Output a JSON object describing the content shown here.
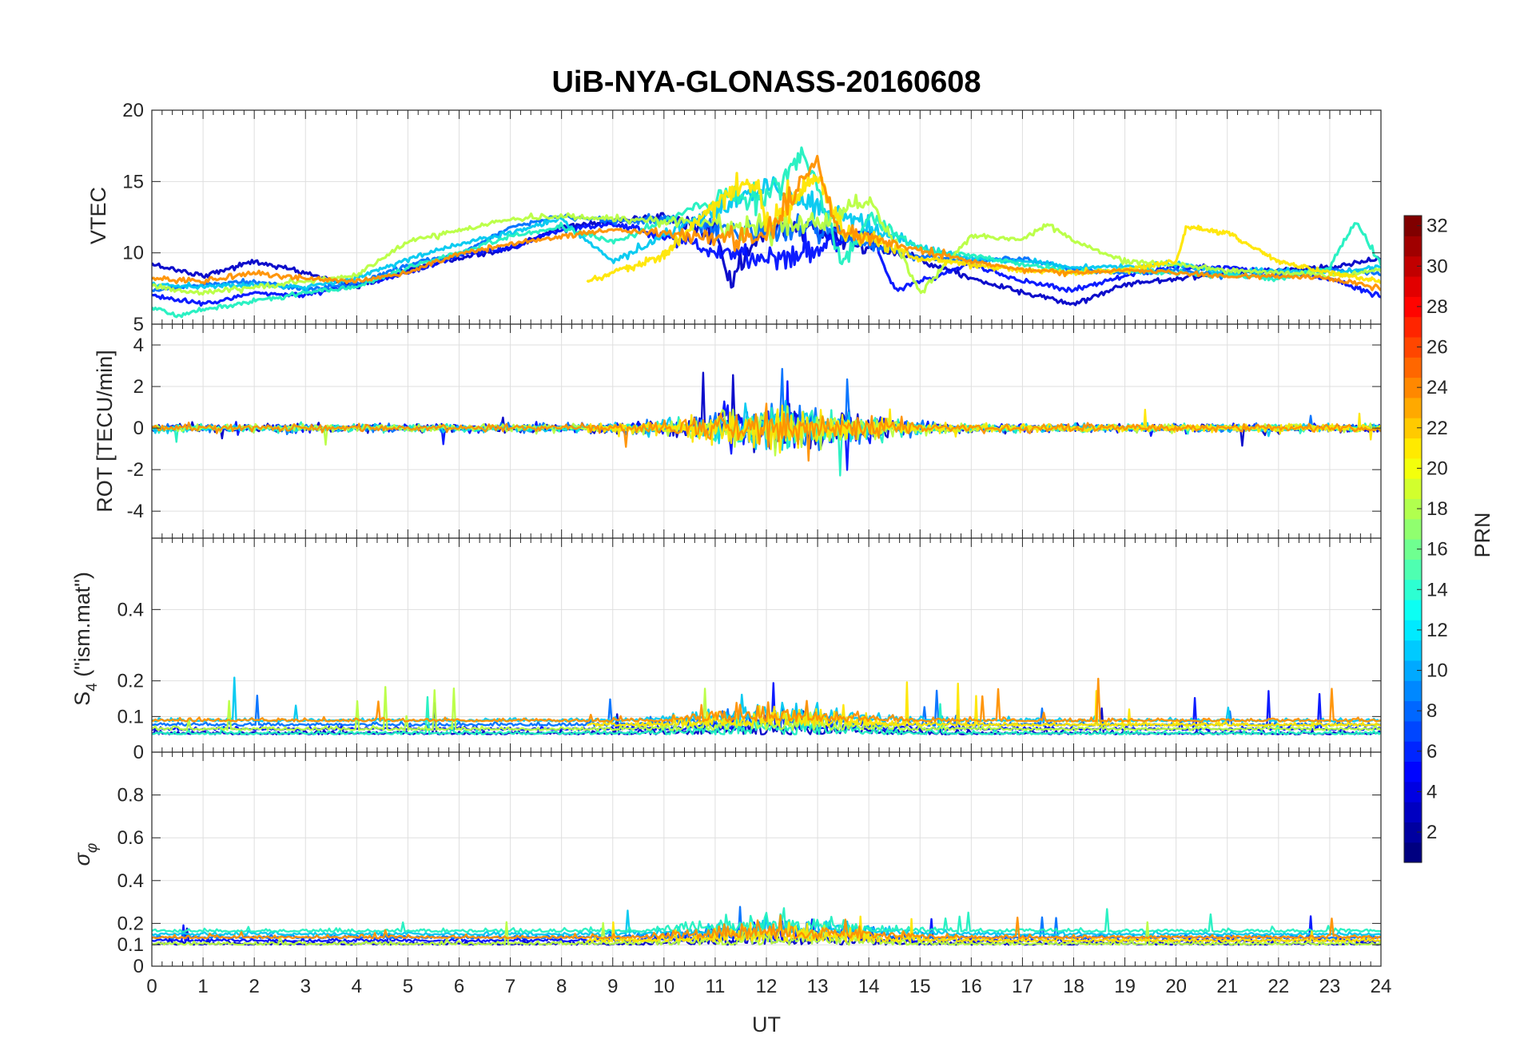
{
  "chart_data": {
    "type": "line",
    "title": "UiB-NYA-GLONASS-20160608",
    "xlabel": "UT",
    "xlim": [
      0,
      24
    ],
    "xticks": [
      0,
      1,
      2,
      3,
      4,
      5,
      6,
      7,
      8,
      9,
      10,
      11,
      12,
      13,
      14,
      15,
      16,
      17,
      18,
      19,
      20,
      21,
      22,
      23,
      24
    ],
    "grid": true,
    "panels": [
      {
        "ylabel": "VTEC",
        "ylim": [
          5,
          20
        ],
        "yticks": [
          5,
          10,
          15,
          20
        ]
      },
      {
        "ylabel": "ROT [TECU/min]",
        "ylim": [
          -5.3,
          5
        ],
        "yticks": [
          -4,
          -2,
          0,
          2,
          4
        ]
      },
      {
        "ylabel": "S₄ (\"ism.mat\")",
        "ylabel_main": "S",
        "ylabel_sub": "4",
        "ylabel_rest": " (\"ism.mat\")",
        "ylim": [
          0,
          0.6
        ],
        "yticks": [
          0,
          0.1,
          0.2,
          0.4
        ]
      },
      {
        "ylabel": "σ_φ",
        "ylabel_main": "σ",
        "ylabel_sub": "φ",
        "ylim": [
          0,
          1
        ],
        "yticks": [
          0,
          0.1,
          0.2,
          0.4,
          0.6,
          0.8
        ]
      }
    ],
    "colorbar": {
      "label": "PRN",
      "range": [
        1,
        32
      ],
      "ticks": [
        2,
        4,
        6,
        8,
        10,
        12,
        14,
        16,
        18,
        20,
        22,
        24,
        26,
        28,
        30,
        32
      ],
      "colormap": "jet"
    },
    "series": [
      {
        "prn": 2,
        "color": "#0000C8",
        "vtec": [
          [
            0,
            9.2
          ],
          [
            1,
            8.4
          ],
          [
            2,
            9.4
          ],
          [
            3,
            8.6
          ],
          [
            4,
            7.6
          ],
          [
            5,
            8.8
          ],
          [
            6,
            9.6
          ],
          [
            7,
            10.3
          ],
          [
            8,
            11.8
          ],
          [
            9,
            12.2
          ],
          [
            10,
            12.6
          ],
          [
            11,
            11.4
          ],
          [
            11.3,
            8.0
          ],
          [
            12,
            11.8
          ],
          [
            13,
            11.6
          ],
          [
            14,
            10.4
          ],
          [
            15,
            9.6
          ],
          [
            16,
            8.2
          ],
          [
            17,
            7.2
          ],
          [
            18,
            6.4
          ],
          [
            19,
            7.8
          ],
          [
            20,
            8.2
          ],
          [
            21,
            8.6
          ],
          [
            22,
            8.8
          ],
          [
            23,
            9.0
          ],
          [
            24,
            9.6
          ]
        ]
      },
      {
        "prn": 4,
        "color": "#0010FF",
        "vtec": [
          [
            0,
            7.0
          ],
          [
            1,
            6.4
          ],
          [
            2,
            7.2
          ],
          [
            3,
            7.0
          ],
          [
            4,
            7.8
          ],
          [
            5,
            8.6
          ],
          [
            6,
            9.8
          ],
          [
            7,
            10.4
          ],
          [
            8,
            11.6
          ],
          [
            9,
            12.0
          ],
          [
            10,
            11.2
          ],
          [
            11,
            10.2
          ],
          [
            12,
            9.6
          ],
          [
            13,
            10.2
          ],
          [
            14,
            11.6
          ],
          [
            14.5,
            7.4
          ],
          [
            16,
            9.2
          ],
          [
            17,
            8.0
          ],
          [
            18,
            7.4
          ],
          [
            19,
            8.4
          ],
          [
            20,
            9.0
          ],
          [
            21,
            9.0
          ],
          [
            22,
            8.6
          ],
          [
            23,
            8.2
          ],
          [
            24,
            7.0
          ]
        ]
      },
      {
        "prn": 8,
        "color": "#0070FF",
        "vtec": [
          [
            0,
            7.4
          ],
          [
            1,
            7.8
          ],
          [
            2,
            8.0
          ],
          [
            3,
            7.4
          ],
          [
            4,
            7.8
          ],
          [
            5,
            9.2
          ],
          [
            6,
            9.8
          ],
          [
            7,
            11.8
          ],
          [
            8,
            12.6
          ],
          [
            9,
            12.2
          ],
          [
            10,
            12.4
          ],
          [
            11,
            11.8
          ],
          [
            12,
            11.4
          ],
          [
            13,
            11.8
          ],
          [
            14,
            10.6
          ],
          [
            15,
            9.8
          ],
          [
            16,
            9.4
          ],
          [
            17,
            9.6
          ],
          [
            18,
            8.8
          ],
          [
            19,
            8.6
          ],
          [
            20,
            8.8
          ],
          [
            21,
            8.4
          ],
          [
            22,
            8.4
          ],
          [
            23,
            8.8
          ],
          [
            24,
            8.6
          ]
        ]
      },
      {
        "prn": 12,
        "color": "#00C8F0",
        "vtec": [
          [
            0,
            7.8
          ],
          [
            1,
            7.6
          ],
          [
            2,
            7.8
          ],
          [
            3,
            7.6
          ],
          [
            4,
            8.2
          ],
          [
            5,
            9.6
          ],
          [
            6,
            10.6
          ],
          [
            7,
            11.4
          ],
          [
            8,
            12.4
          ],
          [
            9,
            9.4
          ],
          [
            10,
            11.2
          ],
          [
            11,
            13.0
          ],
          [
            12,
            14.8
          ],
          [
            13,
            13.2
          ],
          [
            14,
            11.8
          ],
          [
            15,
            10.4
          ],
          [
            16,
            9.6
          ],
          [
            17,
            9.4
          ],
          [
            18,
            9.0
          ],
          [
            19,
            9.0
          ],
          [
            20,
            9.2
          ],
          [
            21,
            8.6
          ],
          [
            22,
            8.8
          ],
          [
            23,
            8.6
          ],
          [
            24,
            9.0
          ]
        ]
      },
      {
        "prn": 14,
        "color": "#20F0C0",
        "vtec": [
          [
            0,
            6.2
          ],
          [
            0.5,
            5.6
          ],
          [
            1,
            6.0
          ],
          [
            2,
            6.6
          ],
          [
            3,
            7.2
          ],
          [
            4,
            7.6
          ],
          [
            5,
            9.0
          ],
          [
            6,
            10.0
          ],
          [
            7,
            11.2
          ],
          [
            8,
            11.8
          ],
          [
            9,
            10.8
          ],
          [
            10,
            12.2
          ],
          [
            11,
            13.8
          ],
          [
            12,
            14.0
          ],
          [
            12.7,
            16.4
          ],
          [
            13,
            14.8
          ],
          [
            13.5,
            9.0
          ],
          [
            14,
            12.6
          ],
          [
            15,
            10.2
          ],
          [
            16,
            9.8
          ],
          [
            17,
            9.2
          ],
          [
            18,
            8.6
          ],
          [
            19,
            8.8
          ],
          [
            20,
            8.6
          ],
          [
            21,
            8.4
          ],
          [
            22,
            8.2
          ],
          [
            23,
            9.0
          ],
          [
            23.5,
            12.2
          ],
          [
            24,
            9.2
          ]
        ]
      },
      {
        "prn": 18,
        "color": "#B8FF40",
        "vtec": [
          [
            0,
            7.6
          ],
          [
            1,
            7.2
          ],
          [
            2,
            7.6
          ],
          [
            3,
            8.0
          ],
          [
            4,
            8.4
          ],
          [
            5,
            10.8
          ],
          [
            6,
            11.6
          ],
          [
            7,
            12.4
          ],
          [
            8,
            12.6
          ],
          [
            9,
            12.4
          ],
          [
            10,
            12.2
          ],
          [
            11,
            12.0
          ],
          [
            12,
            11.6
          ],
          [
            13,
            12.2
          ],
          [
            14,
            13.6
          ],
          [
            14.6,
            10.2
          ],
          [
            15,
            7.2
          ],
          [
            16,
            11.2
          ],
          [
            17,
            11.0
          ],
          [
            17.5,
            12.0
          ],
          [
            18,
            10.8
          ],
          [
            19,
            9.4
          ],
          [
            20,
            9.2
          ],
          [
            21,
            8.8
          ],
          [
            22,
            8.6
          ],
          [
            23,
            8.4
          ],
          [
            24,
            8.8
          ]
        ]
      },
      {
        "prn": 20,
        "color": "#FFE600",
        "vtec": [
          [
            8.5,
            8.0
          ],
          [
            9,
            8.6
          ],
          [
            10,
            9.8
          ],
          [
            11,
            13.4
          ],
          [
            11.8,
            15.2
          ],
          [
            12,
            12.0
          ],
          [
            13,
            15.4
          ],
          [
            13.5,
            11.4
          ],
          [
            14,
            11.0
          ],
          [
            15,
            9.6
          ],
          [
            16,
            9.2
          ],
          [
            17,
            8.8
          ],
          [
            18,
            8.6
          ],
          [
            19,
            8.8
          ],
          [
            20,
            9.4
          ],
          [
            20.2,
            11.8
          ],
          [
            21,
            11.4
          ],
          [
            22,
            9.4
          ],
          [
            23,
            8.6
          ],
          [
            24,
            8.0
          ]
        ]
      },
      {
        "prn": 23,
        "color": "#FF9000",
        "vtec": [
          [
            0,
            8.2
          ],
          [
            1,
            8.0
          ],
          [
            2,
            8.6
          ],
          [
            3,
            8.2
          ],
          [
            4,
            8.0
          ],
          [
            5,
            8.6
          ],
          [
            6,
            10.0
          ],
          [
            7,
            10.6
          ],
          [
            8,
            11.2
          ],
          [
            9,
            11.6
          ],
          [
            10,
            11.4
          ],
          [
            11,
            11.0
          ],
          [
            12,
            11.4
          ],
          [
            12.7,
            15.0
          ],
          [
            13,
            16.2
          ],
          [
            13.4,
            11.6
          ],
          [
            14,
            11.0
          ],
          [
            15,
            10.2
          ],
          [
            16,
            9.4
          ],
          [
            17,
            8.8
          ],
          [
            18,
            8.6
          ],
          [
            19,
            8.8
          ],
          [
            20,
            8.6
          ],
          [
            21,
            8.4
          ],
          [
            22,
            8.4
          ],
          [
            23,
            8.2
          ],
          [
            24,
            7.6
          ]
        ]
      }
    ]
  }
}
